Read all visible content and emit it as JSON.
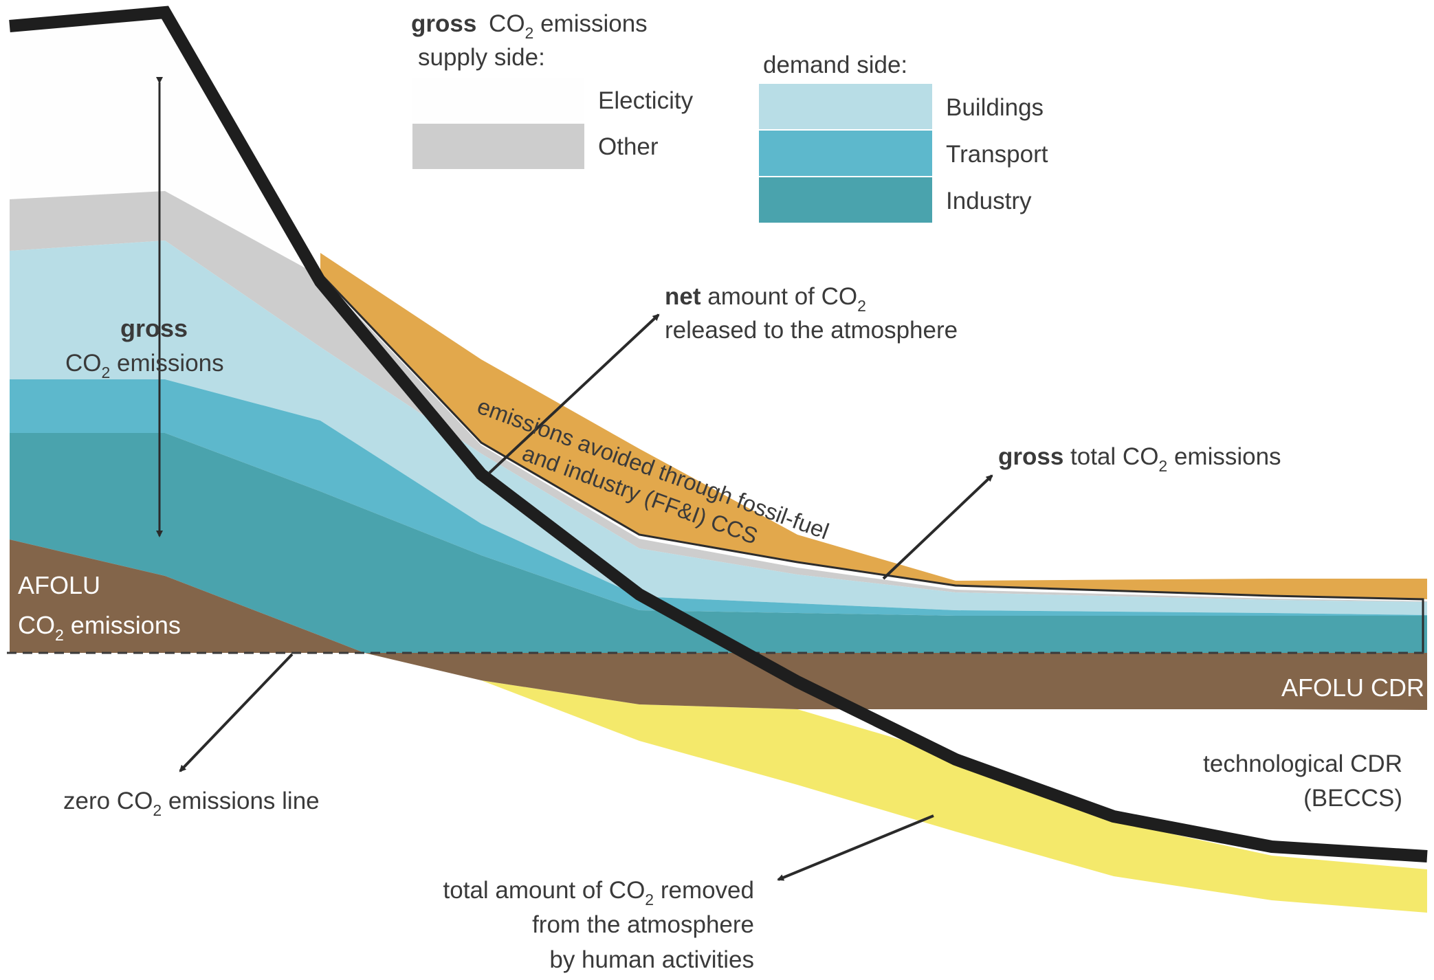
{
  "colors": {
    "electricity": "#fefefe",
    "other": "#cdcdcd",
    "buildings": "#b8dde6",
    "transport": "#5db8cc",
    "industry": "#4aa3ad",
    "afolu": "#83654a",
    "ccs": "#e2a84c",
    "beccs": "#f4e96b",
    "net_line": "#1e1e1e",
    "text": "#3a3a3a",
    "arrow": "#2a2a2a"
  },
  "legend": {
    "supply_title_bold": "gross",
    "supply_title_co": "CO",
    "supply_title_sub": "2",
    "supply_title_rest": " emissions",
    "supply_title_line2": "supply side:",
    "demand_title": "demand side:",
    "items": [
      {
        "key": "electricity",
        "label": "Electicity",
        "group": "supply"
      },
      {
        "key": "other",
        "label": "Other",
        "group": "supply"
      },
      {
        "key": "buildings",
        "label": "Buildings",
        "group": "demand"
      },
      {
        "key": "transport",
        "label": "Transport",
        "group": "demand"
      },
      {
        "key": "industry",
        "label": "Industry",
        "group": "demand"
      }
    ]
  },
  "labels": {
    "gross_bold": "gross",
    "gross_co": "CO",
    "gross_sub": "2",
    "gross_rest": " emissions",
    "afolu_line1": "AFOLU",
    "afolu_co": "CO",
    "afolu_sub": "2",
    "afolu_rest": " emissions",
    "net_bold": "net",
    "net_rest": " amount of CO",
    "net_sub": "2",
    "net_line2": "released to the atmosphere",
    "ccs_line1": "emissions avoided through fossil-fuel",
    "ccs_line2": "and industry (FF&I) CCS",
    "gross_total_bold": "gross",
    "gross_total_rest": " total CO",
    "gross_total_sub": "2",
    "gross_total_end": " emissions",
    "afolu_cdr": "AFOLU CDR",
    "tech_cdr_line1": "technological CDR",
    "tech_cdr_line2": "(BECCS)",
    "zero_pre": "zero CO",
    "zero_sub": "2",
    "zero_rest": " emissions line",
    "removed_line1_pre": "total amount of CO",
    "removed_line1_sub": "2",
    "removed_line1_rest": " removed",
    "removed_line2": "from the atmosphere",
    "removed_line3": "by human activities"
  }
}
